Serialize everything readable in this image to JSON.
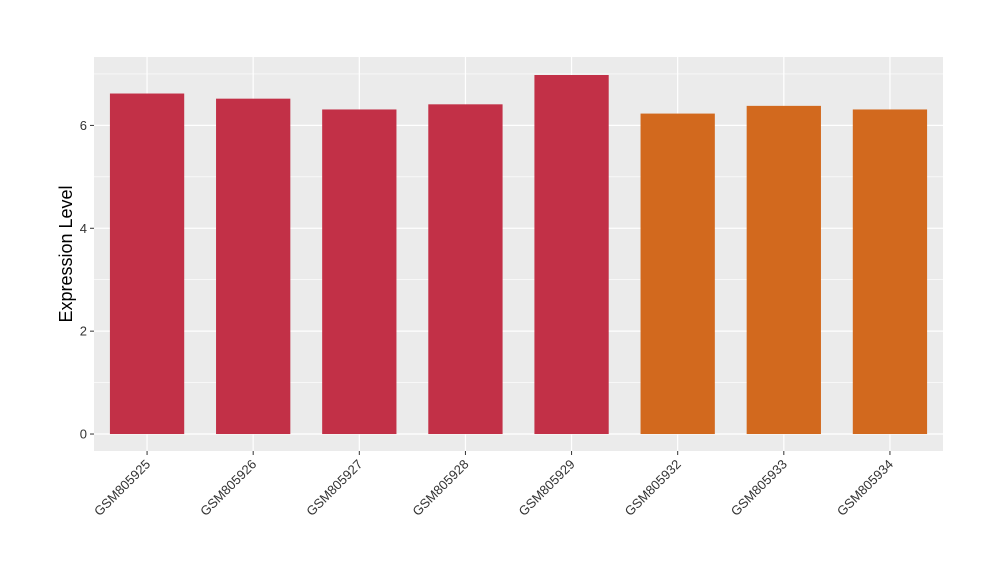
{
  "chart_data": {
    "type": "bar",
    "title": "",
    "xlabel": "",
    "ylabel": "Expression Level",
    "categories": [
      "GSM805925",
      "GSM805926",
      "GSM805927",
      "GSM805928",
      "GSM805929",
      "GSM805932",
      "GSM805933",
      "GSM805934"
    ],
    "values": [
      6.62,
      6.52,
      6.31,
      6.41,
      6.98,
      6.23,
      6.38,
      6.31
    ],
    "bar_colors": [
      "#c23047",
      "#c23047",
      "#c23047",
      "#c23047",
      "#c23047",
      "#d2691e",
      "#d2691e",
      "#d2691e"
    ],
    "yticks": [
      0,
      2,
      4,
      6
    ],
    "ytick_labels": [
      "0",
      "2",
      "4",
      "6"
    ],
    "ylim": [
      -0.33,
      7.33
    ],
    "grid": true,
    "legend": "none",
    "panel_background": "#ebebeb",
    "grid_color": "#ffffff"
  }
}
